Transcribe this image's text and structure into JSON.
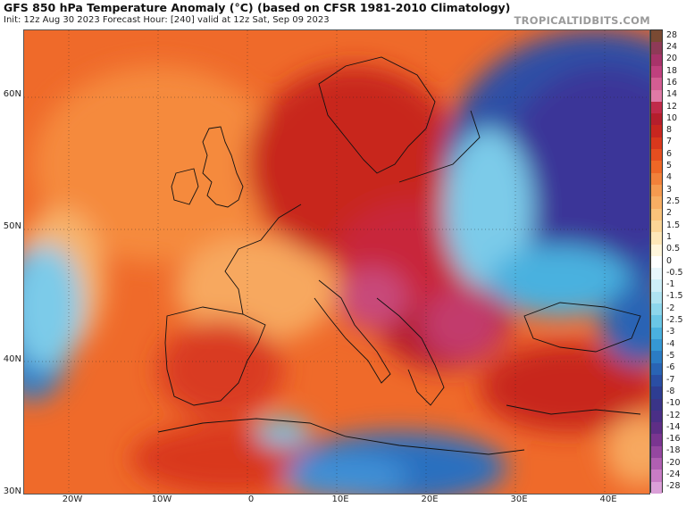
{
  "header": {
    "title": "GFS 850 hPa Temperature Anomaly (°C) (based on CFSR 1981-2010 Climatology)",
    "subtitle": "Init: 12z Aug 30 2023   Forecast Hour: [240]   valid at 12z Sat, Sep 09 2023",
    "brand": "TROPICALTIDBITS.COM"
  },
  "map": {
    "latitude_labels": [
      "60N",
      "50N",
      "40N",
      "30N"
    ],
    "longitude_labels": [
      "20W",
      "10W",
      "0",
      "10E",
      "20E",
      "30E",
      "40E"
    ],
    "latitude_values": [
      60,
      50,
      40,
      30
    ],
    "longitude_values": [
      -20,
      -10,
      0,
      10,
      20,
      30,
      40
    ],
    "extent": {
      "lon_min": -25.5,
      "lon_max": 44.5,
      "lat_min": 30,
      "lat_max": 65
    }
  },
  "colorbar": {
    "labels": [
      "28",
      "24",
      "20",
      "18",
      "16",
      "14",
      "12",
      "10",
      "8",
      "7",
      "6",
      "5",
      "4",
      "3",
      "2.5",
      "2",
      "1.5",
      "1",
      "0.5",
      "0",
      "-0.5",
      "-1",
      "-1.5",
      "-2",
      "-2.5",
      "-3",
      "-4",
      "-5",
      "-6",
      "-7",
      "-8",
      "-10",
      "-12",
      "-14",
      "-16",
      "-18",
      "-20",
      "-24",
      "-28"
    ],
    "colors": [
      "#7a4a33",
      "#8e3a57",
      "#a8336a",
      "#c0407e",
      "#d45d92",
      "#e07aa6",
      "#c02a4a",
      "#b51e2c",
      "#c8261f",
      "#d9381c",
      "#e54e1f",
      "#ee6726",
      "#f2813a",
      "#f59a4f",
      "#f7ae63",
      "#f9c27a",
      "#fbd596",
      "#fde7b8",
      "#fff6dc",
      "#ffffff",
      "#e8f6fb",
      "#cdeef7",
      "#afe3f1",
      "#8dd6ec",
      "#6ac6e6",
      "#4ab1df",
      "#3598d4",
      "#2b7cc4",
      "#2964b4",
      "#2a4ea3",
      "#2e3d92",
      "#3a3488",
      "#4a2f86",
      "#5e2e86",
      "#7a3590",
      "#9547a0",
      "#b05fb2",
      "#c87cc5",
      "#dba0d8"
    ]
  }
}
